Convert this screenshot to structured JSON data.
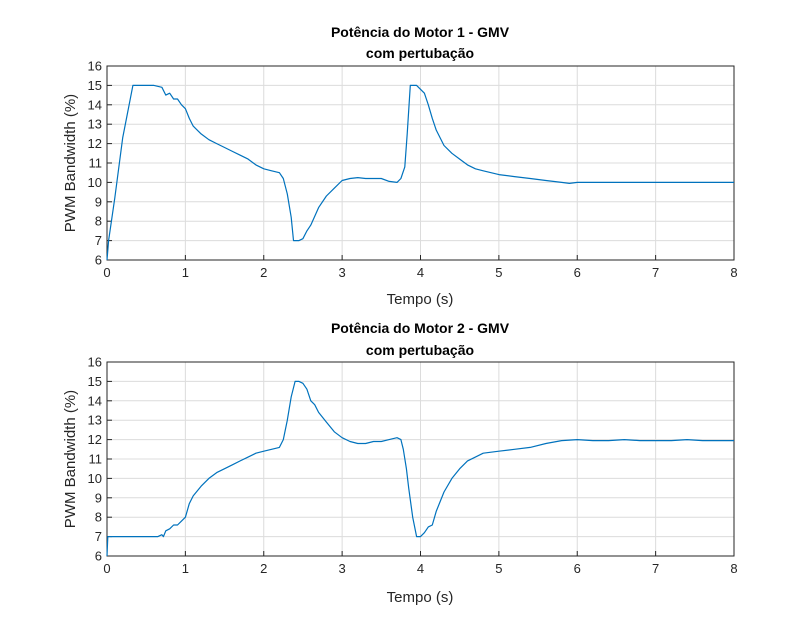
{
  "chart_data": [
    {
      "type": "line",
      "title": "Potência do Motor 1 - GMV",
      "subtitle": "com pertubação",
      "xlabel": "Tempo (s)",
      "ylabel": "PWM Bandwidth (%)",
      "xlim": [
        0,
        8
      ],
      "ylim": [
        6,
        16
      ],
      "xticks": [
        "0",
        "1",
        "2",
        "3",
        "4",
        "5",
        "6",
        "7",
        "8"
      ],
      "yticks": [
        "6",
        "7",
        "8",
        "9",
        "10",
        "11",
        "12",
        "13",
        "14",
        "15",
        "16"
      ],
      "grid": true,
      "line_color": "#0072BD",
      "series": [
        {
          "x": [
            0,
            0.02,
            0.1,
            0.2,
            0.33,
            0.4,
            0.5,
            0.6,
            0.7,
            0.75,
            0.8,
            0.85,
            0.9,
            0.95,
            1.0,
            1.05,
            1.1,
            1.2,
            1.3,
            1.4,
            1.5,
            1.6,
            1.7,
            1.8,
            1.9,
            2.0,
            2.1,
            2.2,
            2.25,
            2.3,
            2.35,
            2.38,
            2.45,
            2.5,
            2.55,
            2.6,
            2.7,
            2.8,
            2.9,
            3.0,
            3.1,
            3.2,
            3.3,
            3.4,
            3.5,
            3.6,
            3.7,
            3.75,
            3.8,
            3.83,
            3.87,
            3.9,
            3.95,
            4.0,
            4.05,
            4.1,
            4.15,
            4.2,
            4.3,
            4.4,
            4.5,
            4.6,
            4.7,
            4.8,
            5.0,
            5.2,
            5.4,
            5.6,
            5.8,
            5.9,
            6.0,
            6.2,
            6.4,
            6.6,
            6.8,
            7.0,
            7.2,
            7.4,
            7.6,
            7.8,
            8.0
          ],
          "y": [
            6.0,
            7.0,
            9.2,
            12.3,
            15.0,
            15.0,
            15.0,
            15.0,
            14.9,
            14.5,
            14.6,
            14.3,
            14.3,
            14.0,
            13.8,
            13.3,
            12.9,
            12.5,
            12.2,
            12.0,
            11.8,
            11.6,
            11.4,
            11.2,
            10.9,
            10.7,
            10.6,
            10.5,
            10.2,
            9.4,
            8.2,
            7.0,
            7.0,
            7.1,
            7.5,
            7.8,
            8.7,
            9.3,
            9.7,
            10.1,
            10.2,
            10.25,
            10.2,
            10.2,
            10.2,
            10.05,
            10.0,
            10.2,
            10.8,
            12.5,
            15.0,
            15.0,
            15.0,
            14.8,
            14.6,
            14.0,
            13.3,
            12.7,
            11.9,
            11.5,
            11.2,
            10.9,
            10.7,
            10.6,
            10.4,
            10.3,
            10.2,
            10.1,
            10.0,
            9.95,
            10.0,
            10.0,
            10.0,
            10.0,
            10.0,
            10.0,
            10.0,
            10.0,
            10.0,
            10.0,
            10.0
          ]
        }
      ]
    },
    {
      "type": "line",
      "title": "Potência do Motor 2 - GMV",
      "subtitle": "com pertubação",
      "xlabel": "Tempo (s)",
      "ylabel": "PWM Bandwidth (%)",
      "xlim": [
        0,
        8
      ],
      "ylim": [
        6,
        16
      ],
      "xticks": [
        "0",
        "1",
        "2",
        "3",
        "4",
        "5",
        "6",
        "7",
        "8"
      ],
      "yticks": [
        "6",
        "7",
        "8",
        "9",
        "10",
        "11",
        "12",
        "13",
        "14",
        "15",
        "16"
      ],
      "grid": true,
      "line_color": "#0072BD",
      "series": [
        {
          "x": [
            0,
            0.01,
            0.02,
            0.3,
            0.5,
            0.65,
            0.7,
            0.72,
            0.75,
            0.8,
            0.85,
            0.9,
            0.95,
            1.0,
            1.05,
            1.1,
            1.2,
            1.3,
            1.4,
            1.5,
            1.6,
            1.7,
            1.8,
            1.9,
            2.0,
            2.1,
            2.2,
            2.25,
            2.3,
            2.35,
            2.4,
            2.45,
            2.5,
            2.55,
            2.6,
            2.65,
            2.7,
            2.8,
            2.9,
            3.0,
            3.1,
            3.2,
            3.3,
            3.4,
            3.5,
            3.6,
            3.7,
            3.75,
            3.78,
            3.82,
            3.85,
            3.9,
            3.95,
            4.0,
            4.05,
            4.1,
            4.15,
            4.2,
            4.3,
            4.4,
            4.5,
            4.6,
            4.7,
            4.8,
            5.0,
            5.2,
            5.4,
            5.6,
            5.8,
            6.0,
            6.2,
            6.4,
            6.6,
            6.8,
            7.0,
            7.2,
            7.4,
            7.6,
            7.8,
            8.0
          ],
          "y": [
            6.0,
            7.0,
            7.0,
            7.0,
            7.0,
            7.0,
            7.1,
            7.0,
            7.3,
            7.4,
            7.6,
            7.6,
            7.8,
            8.0,
            8.7,
            9.1,
            9.6,
            10.0,
            10.3,
            10.5,
            10.7,
            10.9,
            11.1,
            11.3,
            11.4,
            11.5,
            11.6,
            12.0,
            13.0,
            14.2,
            15.0,
            15.0,
            14.9,
            14.6,
            14.0,
            13.8,
            13.4,
            12.9,
            12.4,
            12.1,
            11.9,
            11.8,
            11.8,
            11.9,
            11.9,
            12.0,
            12.1,
            12.0,
            11.5,
            10.5,
            9.5,
            8.0,
            7.0,
            7.0,
            7.2,
            7.5,
            7.6,
            8.3,
            9.3,
            10.0,
            10.5,
            10.9,
            11.1,
            11.3,
            11.4,
            11.5,
            11.6,
            11.8,
            11.95,
            12.0,
            11.95,
            11.95,
            12.0,
            11.95,
            11.95,
            11.95,
            12.0,
            11.95,
            11.95,
            11.95
          ]
        }
      ]
    }
  ]
}
